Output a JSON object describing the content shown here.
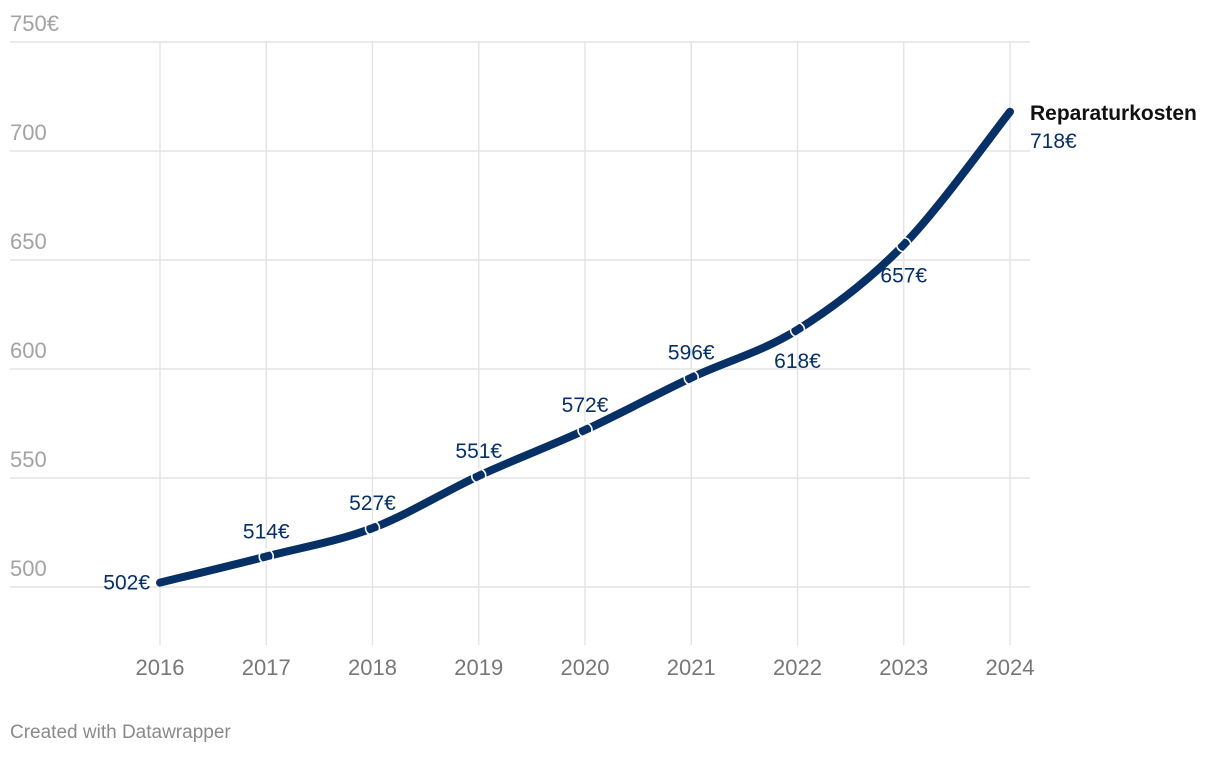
{
  "chart_data": {
    "type": "line",
    "x": [
      "2016",
      "2017",
      "2018",
      "2019",
      "2020",
      "2021",
      "2022",
      "2023",
      "2024"
    ],
    "series": [
      {
        "name": "Reparaturkosten",
        "values": [
          502,
          514,
          527,
          551,
          572,
          596,
          618,
          657,
          718
        ],
        "labels": [
          "502€",
          "514€",
          "527€",
          "551€",
          "572€",
          "596€",
          "618€",
          "657€",
          "718€"
        ]
      }
    ],
    "ylim": [
      500,
      750
    ],
    "yticks": [
      500,
      550,
      600,
      650,
      700,
      750
    ],
    "ytick_labels": [
      "500",
      "550",
      "600",
      "650",
      "700",
      "750€"
    ],
    "grid": true,
    "color": "#073066"
  },
  "footer": "Created with Datawrapper"
}
